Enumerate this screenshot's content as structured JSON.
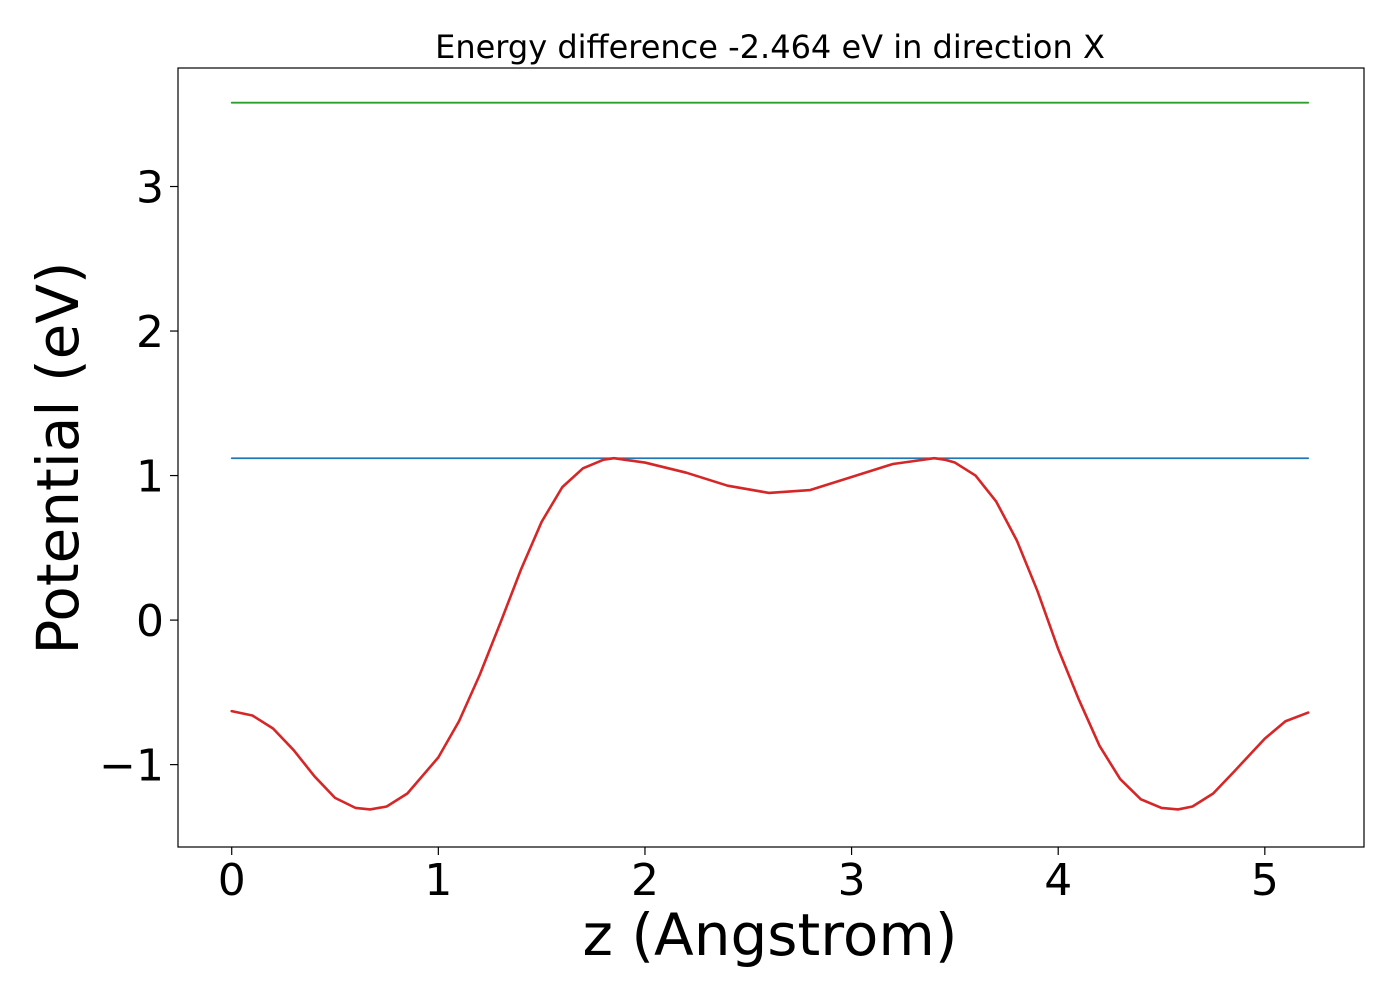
{
  "chart_data": {
    "type": "line",
    "title": "Energy difference -2.464 eV in direction X",
    "xlabel": "z (Angstrom)",
    "ylabel": "Potential (eV)",
    "xlim": [
      -0.26,
      5.48
    ],
    "ylim": [
      -1.57,
      3.82
    ],
    "xticks": [
      0,
      1,
      2,
      3,
      4,
      5
    ],
    "xtick_labels": [
      "0",
      "1",
      "2",
      "3",
      "4",
      "5"
    ],
    "yticks": [
      -1,
      0,
      1,
      2,
      3
    ],
    "ytick_labels": [
      "−1",
      "0",
      "1",
      "2",
      "3"
    ],
    "grid": false,
    "series": [
      {
        "color": "#2ca02c",
        "x": [
          0,
          5.21
        ],
        "y": [
          3.58,
          3.58
        ]
      },
      {
        "color": "#1f77b4",
        "x": [
          0,
          5.21
        ],
        "y": [
          1.12,
          1.12
        ]
      },
      {
        "color": "#d62728",
        "x": [
          0,
          0.1,
          0.2,
          0.3,
          0.4,
          0.5,
          0.6,
          0.67,
          0.75,
          0.85,
          1.0,
          1.1,
          1.2,
          1.3,
          1.4,
          1.5,
          1.6,
          1.7,
          1.8,
          1.85,
          1.9,
          2.0,
          2.2,
          2.4,
          2.6,
          2.8,
          3.0,
          3.2,
          3.3,
          3.4,
          3.45,
          3.5,
          3.6,
          3.7,
          3.8,
          3.9,
          4.0,
          4.1,
          4.2,
          4.3,
          4.4,
          4.5,
          4.58,
          4.65,
          4.75,
          4.85,
          5.0,
          5.1,
          5.21
        ],
        "y": [
          -0.63,
          -0.66,
          -0.75,
          -0.9,
          -1.08,
          -1.23,
          -1.3,
          -1.31,
          -1.29,
          -1.2,
          -0.95,
          -0.7,
          -0.38,
          -0.02,
          0.35,
          0.68,
          0.92,
          1.05,
          1.11,
          1.12,
          1.11,
          1.09,
          1.02,
          0.93,
          0.88,
          0.9,
          0.99,
          1.08,
          1.1,
          1.12,
          1.11,
          1.09,
          1.0,
          0.82,
          0.55,
          0.2,
          -0.2,
          -0.55,
          -0.87,
          -1.1,
          -1.24,
          -1.3,
          -1.31,
          -1.29,
          -1.2,
          -1.05,
          -0.82,
          -0.7,
          -0.64
        ]
      }
    ]
  }
}
